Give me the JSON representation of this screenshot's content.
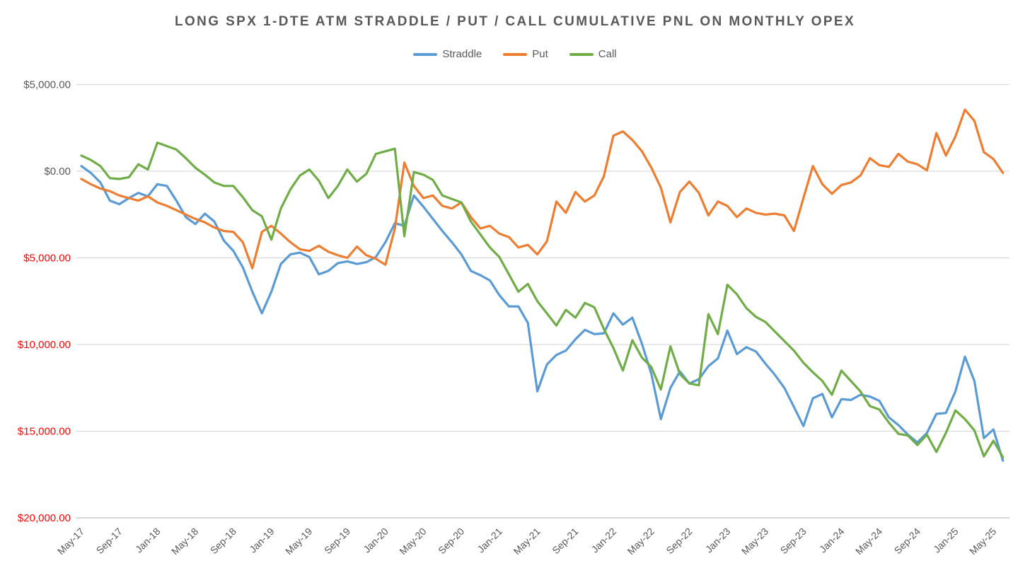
{
  "title": "LONG SPX 1-DTE ATM STRADDLE / PUT / CALL CUMULATIVE PNL ON MONTHLY OPEX",
  "colors": {
    "straddle": "#5B9BD5",
    "put": "#ED7D31",
    "call": "#70AD47",
    "text_gray": "#595959",
    "negative_red": "#FF0000",
    "gridline": "#D9D9D9",
    "axis_line": "#BFBFBF"
  },
  "legend": [
    {
      "label": "Straddle",
      "color": "#5B9BD5"
    },
    {
      "label": "Put",
      "color": "#ED7D31"
    },
    {
      "label": "Call",
      "color": "#70AD47"
    }
  ],
  "y_axis": {
    "ticks": [
      {
        "label": "$5,000.00",
        "value": 5000,
        "color": "#595959"
      },
      {
        "label": "$0.00",
        "value": 0,
        "color": "#595959"
      },
      {
        "label": "$5,000.00",
        "value": -5000,
        "color": "#FF0000"
      },
      {
        "label": "$10,000.00",
        "value": -10000,
        "color": "#FF0000"
      },
      {
        "label": "$15,000.00",
        "value": -15000,
        "color": "#FF0000"
      },
      {
        "label": "$20,000.00",
        "value": -20000,
        "color": "#FF0000"
      }
    ]
  },
  "x_axis": {
    "tick_every": 4,
    "tick_labels": [
      "May-17",
      "Sep-17",
      "Jan-18",
      "May-18",
      "Sep-18",
      "Jan-19",
      "May-19",
      "Sep-19",
      "Jan-20",
      "May-20",
      "Sep-20",
      "Jan-21",
      "May-21",
      "Sep-21",
      "Jan-22",
      "May-22",
      "Sep-22",
      "Jan-23",
      "May-23",
      "Sep-23",
      "Jan-24",
      "May-24",
      "Sep-24",
      "Jan-25",
      "May-25"
    ]
  },
  "chart_data": {
    "type": "line",
    "title": "LONG SPX 1-DTE ATM STRADDLE / PUT / CALL CUMULATIVE PNL ON MONTHLY OPEX",
    "xlabel": "",
    "ylabel": "",
    "ylim": [
      -20000,
      5000
    ],
    "grid": true,
    "legend_position": "top",
    "x": [
      "May-17",
      "Jun-17",
      "Jul-17",
      "Aug-17",
      "Sep-17",
      "Oct-17",
      "Nov-17",
      "Dec-17",
      "Jan-18",
      "Feb-18",
      "Mar-18",
      "Apr-18",
      "May-18",
      "Jun-18",
      "Jul-18",
      "Aug-18",
      "Sep-18",
      "Oct-18",
      "Nov-18",
      "Dec-18",
      "Jan-19",
      "Feb-19",
      "Mar-19",
      "Apr-19",
      "May-19",
      "Jun-19",
      "Jul-19",
      "Aug-19",
      "Sep-19",
      "Oct-19",
      "Nov-19",
      "Dec-19",
      "Jan-20",
      "Feb-20",
      "Mar-20",
      "Apr-20",
      "May-20",
      "Jun-20",
      "Jul-20",
      "Aug-20",
      "Sep-20",
      "Oct-20",
      "Nov-20",
      "Dec-20",
      "Jan-21",
      "Feb-21",
      "Mar-21",
      "Apr-21",
      "May-21",
      "Jun-21",
      "Jul-21",
      "Aug-21",
      "Sep-21",
      "Oct-21",
      "Nov-21",
      "Dec-21",
      "Jan-22",
      "Feb-22",
      "Mar-22",
      "Apr-22",
      "May-22",
      "Jun-22",
      "Jul-22",
      "Aug-22",
      "Sep-22",
      "Oct-22",
      "Nov-22",
      "Dec-22",
      "Jan-23",
      "Feb-23",
      "Mar-23",
      "Apr-23",
      "May-23",
      "Jun-23",
      "Jul-23",
      "Aug-23",
      "Sep-23",
      "Oct-23",
      "Nov-23",
      "Dec-23",
      "Jan-24",
      "Feb-24",
      "Mar-24",
      "Apr-24",
      "May-24",
      "Jun-24",
      "Jul-24",
      "Aug-24",
      "Sep-24",
      "Oct-24",
      "Nov-24",
      "Dec-24",
      "Jan-25",
      "Feb-25",
      "Mar-25",
      "Apr-25",
      "May-25",
      "Jun-25"
    ],
    "series": [
      {
        "name": "Straddle",
        "color": "#5B9BD5",
        "values": [
          300,
          -100,
          -650,
          -1700,
          -1900,
          -1550,
          -1250,
          -1450,
          -750,
          -850,
          -1700,
          -2650,
          -3050,
          -2450,
          -2900,
          -4000,
          -4600,
          -5550,
          -6950,
          -8200,
          -6950,
          -5350,
          -4800,
          -4700,
          -4950,
          -5950,
          -5750,
          -5300,
          -5200,
          -5350,
          -5250,
          -4950,
          -4100,
          -3000,
          -3150,
          -1400,
          -2050,
          -2750,
          -3450,
          -4100,
          -4800,
          -5750,
          -6000,
          -6300,
          -7150,
          -7800,
          -7800,
          -8750,
          -12700,
          -11150,
          -10600,
          -10350,
          -9700,
          -9150,
          -9400,
          -9350,
          -8200,
          -8850,
          -8450,
          -9950,
          -11700,
          -14300,
          -12500,
          -11550,
          -12250,
          -12000,
          -11250,
          -10800,
          -9200,
          -10550,
          -10150,
          -10400,
          -11100,
          -11750,
          -12500,
          -13600,
          -14700,
          -13100,
          -12850,
          -14200,
          -13150,
          -13200,
          -12900,
          -13000,
          -13250,
          -14200,
          -14650,
          -15200,
          -15650,
          -15100,
          -14000,
          -13950,
          -12700,
          -10700,
          -12100,
          -15400,
          -14900,
          -16700
        ]
      },
      {
        "name": "Put",
        "color": "#ED7D31",
        "values": [
          -450,
          -750,
          -1000,
          -1150,
          -1400,
          -1550,
          -1700,
          -1450,
          -1800,
          -2000,
          -2250,
          -2500,
          -2750,
          -2950,
          -3250,
          -3450,
          -3500,
          -4100,
          -5600,
          -3500,
          -3150,
          -3600,
          -4100,
          -4500,
          -4600,
          -4300,
          -4650,
          -4850,
          -5000,
          -4350,
          -4850,
          -5050,
          -5400,
          -3300,
          500,
          -850,
          -1550,
          -1400,
          -2000,
          -2150,
          -1800,
          -2650,
          -3300,
          -3150,
          -3600,
          -3800,
          -4400,
          -4250,
          -4800,
          -4050,
          -1750,
          -2400,
          -1200,
          -1750,
          -1400,
          -300,
          2050,
          2300,
          1800,
          1150,
          200,
          -950,
          -2950,
          -1200,
          -600,
          -1250,
          -2550,
          -1750,
          -2000,
          -2650,
          -2150,
          -2400,
          -2500,
          -2450,
          -2550,
          -3450,
          -1550,
          300,
          -750,
          -1300,
          -800,
          -650,
          -250,
          750,
          350,
          250,
          1000,
          550,
          400,
          50,
          2200,
          900,
          2000,
          3550,
          2900,
          1100,
          700,
          -100
        ]
      },
      {
        "name": "Call",
        "color": "#70AD47",
        "values": [
          900,
          650,
          300,
          -400,
          -450,
          -350,
          400,
          100,
          1650,
          1450,
          1250,
          750,
          200,
          -200,
          -650,
          -850,
          -850,
          -1500,
          -2250,
          -2600,
          -3950,
          -2150,
          -1050,
          -250,
          100,
          -550,
          -1550,
          -850,
          100,
          -600,
          -150,
          1000,
          1150,
          1300,
          -3750,
          -50,
          -200,
          -500,
          -1400,
          -1600,
          -1800,
          -2900,
          -3650,
          -4400,
          -4950,
          -5950,
          -6950,
          -6500,
          -7500,
          -8200,
          -8900,
          -8000,
          -8450,
          -7600,
          -7850,
          -9100,
          -10200,
          -11500,
          -9750,
          -10750,
          -11300,
          -12600,
          -10100,
          -11700,
          -12250,
          -12350,
          -8250,
          -9400,
          -6550,
          -7100,
          -7900,
          -8400,
          -8700,
          -9250,
          -9800,
          -10350,
          -11050,
          -11600,
          -12100,
          -12900,
          -11500,
          -12100,
          -12700,
          -13550,
          -13750,
          -14500,
          -15150,
          -15250,
          -15800,
          -15200,
          -16200,
          -15100,
          -13800,
          -14300,
          -14950,
          -16450,
          -15550,
          -16500
        ]
      }
    ]
  }
}
